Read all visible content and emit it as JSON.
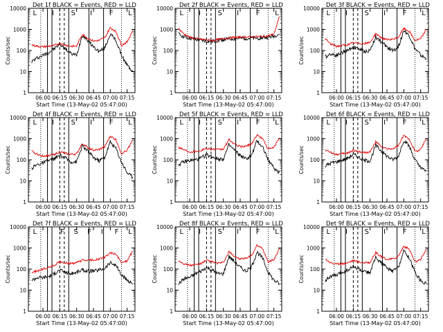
{
  "figure": {
    "xlabel": "Start Time (13-May-02 05:47:00)",
    "ylabel": "Counts/sec",
    "x_ticks": [
      "06:00",
      "06:15",
      "06:30",
      "06:45",
      "07:00",
      "07:15"
    ],
    "y_ticks": [
      "1",
      "10",
      "100",
      "1000",
      "10000"
    ],
    "ylim": [
      1,
      10000
    ],
    "y_scale": "log",
    "colors": {
      "events": "#000000",
      "lld": "#e00000",
      "frame": "#000000"
    }
  },
  "chart_data": [
    {
      "type": "line",
      "title": "Det 1f BLACK = Events, RED = LLD",
      "x": [
        "05:50",
        "05:55",
        "06:00",
        "06:05",
        "06:10",
        "06:15",
        "06:20",
        "06:25",
        "06:30",
        "06:35",
        "06:40",
        "06:45",
        "06:50",
        "06:55",
        "07:00",
        "07:05",
        "07:10",
        "07:15",
        "07:20"
      ],
      "series": [
        {
          "name": "Events",
          "values": [
            30,
            45,
            60,
            80,
            120,
            200,
            120,
            70,
            60,
            550,
            300,
            150,
            90,
            130,
            600,
            300,
            60,
            20,
            10
          ]
        },
        {
          "name": "LLD",
          "values": [
            180,
            160,
            150,
            160,
            170,
            220,
            180,
            160,
            160,
            600,
            380,
            280,
            300,
            400,
            1200,
            800,
            180,
            250,
            900
          ]
        }
      ],
      "xlabel": "Start Time (13-May-02 05:47:00)",
      "ylabel": "Counts/sec",
      "ylim": [
        1,
        10000
      ],
      "markers": [
        "L",
        "I",
        "S",
        "I",
        "F",
        "L"
      ]
    },
    {
      "type": "line",
      "title": "Det 2f BLACK = Events, RED = LLD",
      "x": [
        "05:50",
        "05:55",
        "06:00",
        "06:05",
        "06:10",
        "06:15",
        "06:20",
        "06:25",
        "06:30",
        "06:35",
        "06:40",
        "06:45",
        "06:50",
        "06:55",
        "07:00",
        "07:05",
        "07:10",
        "07:15",
        "07:20"
      ],
      "series": [
        {
          "name": "Events",
          "values": [
            600,
            450,
            380,
            330,
            300,
            280,
            260,
            300,
            330,
            350,
            360,
            380,
            380,
            380,
            380,
            400,
            420,
            480,
            600
          ]
        },
        {
          "name": "LLD",
          "values": [
            1100,
            600,
            420,
            370,
            340,
            320,
            300,
            330,
            360,
            400,
            420,
            430,
            440,
            440,
            450,
            470,
            500,
            600,
            4000
          ]
        }
      ],
      "xlabel": "Start Time (13-May-02 05:47:00)",
      "ylabel": "Counts/sec",
      "ylim": [
        1,
        10000
      ],
      "markers": [
        "L",
        "I",
        "S",
        "I",
        "F",
        "L"
      ]
    },
    {
      "type": "line",
      "title": "Det 3f BLACK = Events, RED = LLD",
      "x": [
        "05:50",
        "05:55",
        "06:00",
        "06:05",
        "06:10",
        "06:15",
        "06:20",
        "06:25",
        "06:30",
        "06:35",
        "06:40",
        "06:45",
        "06:50",
        "06:55",
        "07:00",
        "07:05",
        "07:10",
        "07:15",
        "07:20"
      ],
      "series": [
        {
          "name": "Events",
          "values": [
            50,
            70,
            60,
            80,
            100,
            150,
            120,
            90,
            100,
            450,
            250,
            150,
            100,
            140,
            900,
            500,
            120,
            60,
            40
          ]
        },
        {
          "name": "LLD",
          "values": [
            350,
            200,
            160,
            170,
            190,
            230,
            220,
            210,
            240,
            650,
            400,
            320,
            330,
            420,
            1100,
            800,
            300,
            350,
            1000
          ]
        }
      ],
      "xlabel": "Start Time (13-May-02 05:47:00)",
      "ylabel": "Counts/sec",
      "ylim": [
        1,
        10000
      ],
      "markers": [
        "L",
        "I",
        "S",
        "I",
        "F",
        "L"
      ]
    },
    {
      "type": "line",
      "title": "Det 4f BLACK = Events, RED = LLD",
      "x": [
        "05:50",
        "05:55",
        "06:00",
        "06:05",
        "06:10",
        "06:15",
        "06:20",
        "06:25",
        "06:30",
        "06:35",
        "06:40",
        "06:45",
        "06:50",
        "06:55",
        "07:00",
        "07:05",
        "07:10",
        "07:15",
        "07:20"
      ],
      "series": [
        {
          "name": "Events",
          "values": [
            40,
            60,
            70,
            90,
            110,
            160,
            120,
            80,
            80,
            450,
            250,
            130,
            90,
            130,
            700,
            350,
            80,
            25,
            15
          ]
        },
        {
          "name": "LLD",
          "values": [
            250,
            180,
            150,
            160,
            180,
            240,
            200,
            180,
            190,
            600,
            380,
            280,
            300,
            420,
            1300,
            900,
            200,
            280,
            900
          ]
        }
      ],
      "xlabel": "Start Time (13-May-02 05:47:00)",
      "ylabel": "Counts/sec",
      "ylim": [
        1,
        10000
      ],
      "markers": [
        "L",
        "I",
        "S",
        "I",
        "F",
        "L"
      ]
    },
    {
      "type": "line",
      "title": "Det 5f BLACK = Events, RED = LLD",
      "x": [
        "05:50",
        "05:55",
        "06:00",
        "06:05",
        "06:10",
        "06:15",
        "06:20",
        "06:25",
        "06:30",
        "06:35",
        "06:40",
        "06:45",
        "06:50",
        "06:55",
        "07:00",
        "07:05",
        "07:10",
        "07:15",
        "07:20"
      ],
      "series": [
        {
          "name": "Events",
          "values": [
            60,
            80,
            90,
            100,
            120,
            170,
            140,
            110,
            110,
            500,
            280,
            160,
            110,
            150,
            800,
            400,
            100,
            40,
            25
          ]
        },
        {
          "name": "LLD",
          "values": [
            400,
            300,
            240,
            250,
            280,
            350,
            320,
            300,
            320,
            900,
            550,
            420,
            440,
            560,
            1500,
            1000,
            320,
            380,
            1100
          ]
        }
      ],
      "xlabel": "Start Time (13-May-02 05:47:00)",
      "ylabel": "Counts/sec",
      "ylim": [
        1,
        10000
      ],
      "markers": [
        "L",
        "I",
        "S",
        "I",
        "F",
        "L"
      ]
    },
    {
      "type": "line",
      "title": "Det 6f BLACK = Events, RED = LLD",
      "x": [
        "05:50",
        "05:55",
        "06:00",
        "06:05",
        "06:10",
        "06:15",
        "06:20",
        "06:25",
        "06:30",
        "06:35",
        "06:40",
        "06:45",
        "06:50",
        "06:55",
        "07:00",
        "07:05",
        "07:10",
        "07:15",
        "07:20"
      ],
      "series": [
        {
          "name": "Events",
          "values": [
            50,
            70,
            80,
            95,
            120,
            180,
            130,
            90,
            90,
            480,
            260,
            150,
            100,
            140,
            850,
            420,
            100,
            40,
            30
          ]
        },
        {
          "name": "LLD",
          "values": [
            300,
            220,
            180,
            190,
            210,
            280,
            240,
            220,
            230,
            700,
            420,
            320,
            330,
            450,
            1400,
            950,
            250,
            300,
            1000
          ]
        }
      ],
      "xlabel": "Start Time (13-May-02 05:47:00)",
      "ylabel": "Counts/sec",
      "ylim": [
        1,
        10000
      ],
      "markers": [
        "L",
        "I",
        "S",
        "I",
        "F",
        "L"
      ]
    },
    {
      "type": "line",
      "title": "Det 7f BLACK = Events, RED = LLD",
      "x": [
        "05:50",
        "05:55",
        "06:00",
        "06:05",
        "06:10",
        "06:15",
        "06:20",
        "06:25",
        "06:30",
        "06:35",
        "06:40",
        "06:45",
        "06:50",
        "06:55",
        "07:00",
        "07:05",
        "07:10",
        "07:15",
        "07:20"
      ],
      "series": [
        {
          "name": "Events",
          "values": [
            30,
            40,
            40,
            45,
            60,
            90,
            70,
            60,
            70,
            90,
            80,
            80,
            90,
            110,
            200,
            150,
            50,
            30,
            20
          ]
        },
        {
          "name": "LLD",
          "values": [
            70,
            80,
            100,
            120,
            150,
            220,
            200,
            180,
            200,
            260,
            260,
            270,
            300,
            350,
            600,
            500,
            200,
            250,
            700
          ]
        }
      ],
      "xlabel": "Start Time (13-May-02 05:47:00)",
      "ylabel": "Counts/sec",
      "ylim": [
        1,
        10000
      ],
      "markers": [
        "L",
        "I",
        "F",
        "S",
        "F",
        "I",
        "F",
        "L"
      ]
    },
    {
      "type": "line",
      "title": "Det 8f BLACK = Events, RED = LLD",
      "x": [
        "05:50",
        "05:55",
        "06:00",
        "06:05",
        "06:10",
        "06:15",
        "06:20",
        "06:25",
        "06:30",
        "06:35",
        "06:40",
        "06:45",
        "06:50",
        "06:55",
        "07:00",
        "07:05",
        "07:10",
        "07:15",
        "07:20"
      ],
      "series": [
        {
          "name": "Events",
          "values": [
            20,
            35,
            40,
            60,
            80,
            120,
            90,
            60,
            60,
            400,
            220,
            120,
            80,
            120,
            650,
            320,
            70,
            30,
            20
          ]
        },
        {
          "name": "LLD",
          "values": [
            250,
            180,
            150,
            160,
            180,
            260,
            220,
            190,
            200,
            650,
            400,
            300,
            320,
            430,
            1300,
            900,
            220,
            280,
            950
          ]
        }
      ],
      "xlabel": "Start Time (13-May-02 05:47:00)",
      "ylabel": "Counts/sec",
      "ylim": [
        1,
        10000
      ],
      "markers": [
        "L",
        "I",
        "S",
        "I",
        "F",
        "L"
      ]
    },
    {
      "type": "line",
      "title": "Det 9f BLACK = Events, RED = LLD",
      "x": [
        "05:50",
        "05:55",
        "06:00",
        "06:05",
        "06:10",
        "06:15",
        "06:20",
        "06:25",
        "06:30",
        "06:35",
        "06:40",
        "06:45",
        "06:50",
        "06:55",
        "07:00",
        "07:05",
        "07:10",
        "07:15",
        "07:20"
      ],
      "series": [
        {
          "name": "Events",
          "values": [
            30,
            45,
            50,
            70,
            90,
            130,
            100,
            70,
            70,
            350,
            200,
            110,
            80,
            120,
            700,
            350,
            70,
            30,
            20
          ]
        },
        {
          "name": "LLD",
          "values": [
            300,
            200,
            170,
            180,
            200,
            260,
            220,
            200,
            210,
            600,
            380,
            290,
            300,
            400,
            1200,
            850,
            220,
            270,
            900
          ]
        }
      ],
      "xlabel": "Start Time (13-May-02 05:47:00)",
      "ylabel": "Counts/sec",
      "ylim": [
        1,
        10000
      ],
      "markers": [
        "L",
        "I",
        "S",
        "I",
        "F",
        "L"
      ]
    }
  ]
}
